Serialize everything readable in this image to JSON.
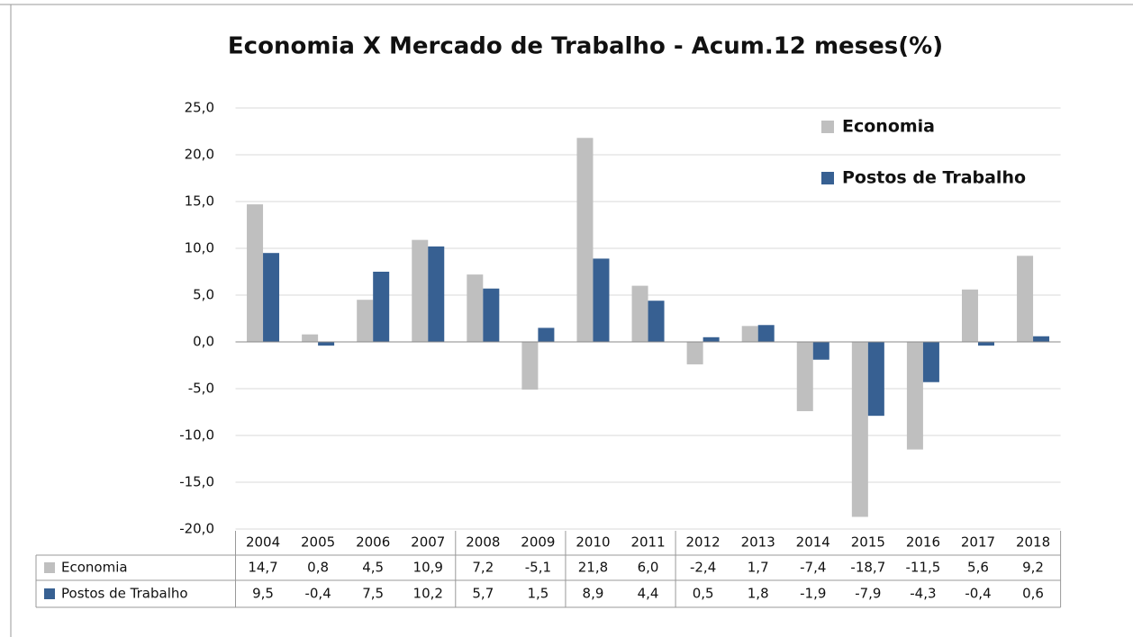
{
  "chart_data": {
    "type": "bar",
    "title": "Economia X Mercado de Trabalho - Acum.12 meses(%)",
    "categories": [
      "2004",
      "2005",
      "2006",
      "2007",
      "2008",
      "2009",
      "2010",
      "2011",
      "2012",
      "2013",
      "2014",
      "2015",
      "2016",
      "2017",
      "2018"
    ],
    "series": [
      {
        "name": "Economia",
        "color": "#bfbfbf",
        "values": [
          14.7,
          0.8,
          4.5,
          10.9,
          7.2,
          -5.1,
          21.8,
          6.0,
          -2.4,
          1.7,
          -7.4,
          -18.7,
          -11.5,
          5.6,
          9.2
        ],
        "value_labels": [
          "14,7",
          "0,8",
          "4,5",
          "10,9",
          "7,2",
          "-5,1",
          "21,8",
          "6,0",
          "-2,4",
          "1,7",
          "-7,4",
          "-18,7",
          "-11,5",
          "5,6",
          "9,2"
        ]
      },
      {
        "name": "Postos de Trabalho",
        "color": "#376092",
        "values": [
          9.5,
          -0.4,
          7.5,
          10.2,
          5.7,
          1.5,
          8.9,
          4.4,
          0.5,
          1.8,
          -1.9,
          -7.9,
          -4.3,
          -0.4,
          0.6
        ],
        "value_labels": [
          "9,5",
          "-0,4",
          "7,5",
          "10,2",
          "5,7",
          "1,5",
          "8,9",
          "4,4",
          "0,5",
          "1,8",
          "-1,9",
          "-7,9",
          "-4,3",
          "-0,4",
          "0,6"
        ]
      }
    ],
    "ylim": [
      -20,
      25
    ],
    "yticks": [
      {
        "value": -20,
        "label": "-20,0"
      },
      {
        "value": -15,
        "label": "-15,0"
      },
      {
        "value": -10,
        "label": "-10,0"
      },
      {
        "value": -5,
        "label": "-5,0"
      },
      {
        "value": 0,
        "label": "0,0"
      },
      {
        "value": 5,
        "label": "5,0"
      },
      {
        "value": 10,
        "label": "10,0"
      },
      {
        "value": 15,
        "label": "15,0"
      },
      {
        "value": 20,
        "label": "20,0"
      },
      {
        "value": 25,
        "label": "25,0"
      }
    ],
    "grid": true,
    "legend": "upper right",
    "data_table": true
  }
}
